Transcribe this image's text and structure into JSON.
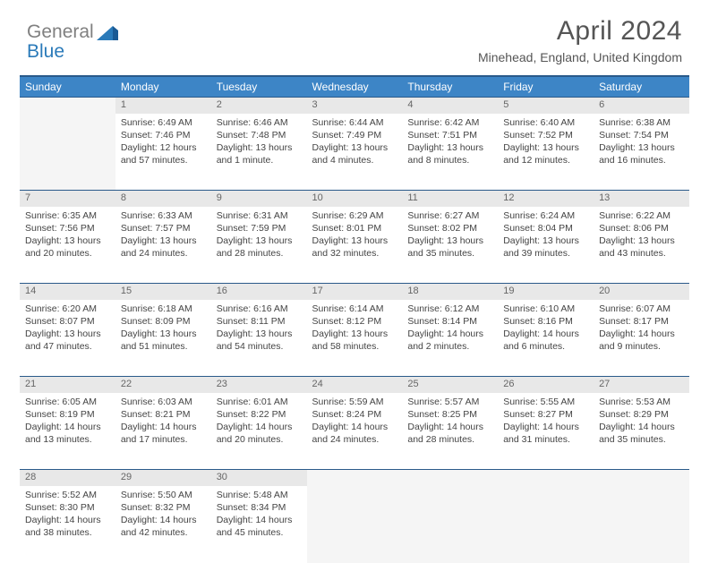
{
  "logo": {
    "text_gray": "General",
    "text_blue": "Blue"
  },
  "title": "April 2024",
  "subtitle": "Minehead, England, United Kingdom",
  "colors": {
    "header_bg": "#3d85c6",
    "header_border": "#2a5a8a",
    "daynum_bg": "#e8e8e8",
    "empty_bg": "#f5f5f5",
    "text": "#444444",
    "title_text": "#555555",
    "logo_gray": "#808080",
    "logo_blue": "#2a7ab9"
  },
  "typography": {
    "title_fontsize": 30,
    "subtitle_fontsize": 14,
    "dayheader_fontsize": 12,
    "cell_fontsize": 10.5
  },
  "day_headers": [
    "Sunday",
    "Monday",
    "Tuesday",
    "Wednesday",
    "Thursday",
    "Friday",
    "Saturday"
  ],
  "weeks": [
    {
      "nums": [
        "",
        "1",
        "2",
        "3",
        "4",
        "5",
        "6"
      ],
      "cells": [
        null,
        {
          "sr": "Sunrise: 6:49 AM",
          "ss": "Sunset: 7:46 PM",
          "dl1": "Daylight: 12 hours",
          "dl2": "and 57 minutes."
        },
        {
          "sr": "Sunrise: 6:46 AM",
          "ss": "Sunset: 7:48 PM",
          "dl1": "Daylight: 13 hours",
          "dl2": "and 1 minute."
        },
        {
          "sr": "Sunrise: 6:44 AM",
          "ss": "Sunset: 7:49 PM",
          "dl1": "Daylight: 13 hours",
          "dl2": "and 4 minutes."
        },
        {
          "sr": "Sunrise: 6:42 AM",
          "ss": "Sunset: 7:51 PM",
          "dl1": "Daylight: 13 hours",
          "dl2": "and 8 minutes."
        },
        {
          "sr": "Sunrise: 6:40 AM",
          "ss": "Sunset: 7:52 PM",
          "dl1": "Daylight: 13 hours",
          "dl2": "and 12 minutes."
        },
        {
          "sr": "Sunrise: 6:38 AM",
          "ss": "Sunset: 7:54 PM",
          "dl1": "Daylight: 13 hours",
          "dl2": "and 16 minutes."
        }
      ]
    },
    {
      "nums": [
        "7",
        "8",
        "9",
        "10",
        "11",
        "12",
        "13"
      ],
      "cells": [
        {
          "sr": "Sunrise: 6:35 AM",
          "ss": "Sunset: 7:56 PM",
          "dl1": "Daylight: 13 hours",
          "dl2": "and 20 minutes."
        },
        {
          "sr": "Sunrise: 6:33 AM",
          "ss": "Sunset: 7:57 PM",
          "dl1": "Daylight: 13 hours",
          "dl2": "and 24 minutes."
        },
        {
          "sr": "Sunrise: 6:31 AM",
          "ss": "Sunset: 7:59 PM",
          "dl1": "Daylight: 13 hours",
          "dl2": "and 28 minutes."
        },
        {
          "sr": "Sunrise: 6:29 AM",
          "ss": "Sunset: 8:01 PM",
          "dl1": "Daylight: 13 hours",
          "dl2": "and 32 minutes."
        },
        {
          "sr": "Sunrise: 6:27 AM",
          "ss": "Sunset: 8:02 PM",
          "dl1": "Daylight: 13 hours",
          "dl2": "and 35 minutes."
        },
        {
          "sr": "Sunrise: 6:24 AM",
          "ss": "Sunset: 8:04 PM",
          "dl1": "Daylight: 13 hours",
          "dl2": "and 39 minutes."
        },
        {
          "sr": "Sunrise: 6:22 AM",
          "ss": "Sunset: 8:06 PM",
          "dl1": "Daylight: 13 hours",
          "dl2": "and 43 minutes."
        }
      ]
    },
    {
      "nums": [
        "14",
        "15",
        "16",
        "17",
        "18",
        "19",
        "20"
      ],
      "cells": [
        {
          "sr": "Sunrise: 6:20 AM",
          "ss": "Sunset: 8:07 PM",
          "dl1": "Daylight: 13 hours",
          "dl2": "and 47 minutes."
        },
        {
          "sr": "Sunrise: 6:18 AM",
          "ss": "Sunset: 8:09 PM",
          "dl1": "Daylight: 13 hours",
          "dl2": "and 51 minutes."
        },
        {
          "sr": "Sunrise: 6:16 AM",
          "ss": "Sunset: 8:11 PM",
          "dl1": "Daylight: 13 hours",
          "dl2": "and 54 minutes."
        },
        {
          "sr": "Sunrise: 6:14 AM",
          "ss": "Sunset: 8:12 PM",
          "dl1": "Daylight: 13 hours",
          "dl2": "and 58 minutes."
        },
        {
          "sr": "Sunrise: 6:12 AM",
          "ss": "Sunset: 8:14 PM",
          "dl1": "Daylight: 14 hours",
          "dl2": "and 2 minutes."
        },
        {
          "sr": "Sunrise: 6:10 AM",
          "ss": "Sunset: 8:16 PM",
          "dl1": "Daylight: 14 hours",
          "dl2": "and 6 minutes."
        },
        {
          "sr": "Sunrise: 6:07 AM",
          "ss": "Sunset: 8:17 PM",
          "dl1": "Daylight: 14 hours",
          "dl2": "and 9 minutes."
        }
      ]
    },
    {
      "nums": [
        "21",
        "22",
        "23",
        "24",
        "25",
        "26",
        "27"
      ],
      "cells": [
        {
          "sr": "Sunrise: 6:05 AM",
          "ss": "Sunset: 8:19 PM",
          "dl1": "Daylight: 14 hours",
          "dl2": "and 13 minutes."
        },
        {
          "sr": "Sunrise: 6:03 AM",
          "ss": "Sunset: 8:21 PM",
          "dl1": "Daylight: 14 hours",
          "dl2": "and 17 minutes."
        },
        {
          "sr": "Sunrise: 6:01 AM",
          "ss": "Sunset: 8:22 PM",
          "dl1": "Daylight: 14 hours",
          "dl2": "and 20 minutes."
        },
        {
          "sr": "Sunrise: 5:59 AM",
          "ss": "Sunset: 8:24 PM",
          "dl1": "Daylight: 14 hours",
          "dl2": "and 24 minutes."
        },
        {
          "sr": "Sunrise: 5:57 AM",
          "ss": "Sunset: 8:25 PM",
          "dl1": "Daylight: 14 hours",
          "dl2": "and 28 minutes."
        },
        {
          "sr": "Sunrise: 5:55 AM",
          "ss": "Sunset: 8:27 PM",
          "dl1": "Daylight: 14 hours",
          "dl2": "and 31 minutes."
        },
        {
          "sr": "Sunrise: 5:53 AM",
          "ss": "Sunset: 8:29 PM",
          "dl1": "Daylight: 14 hours",
          "dl2": "and 35 minutes."
        }
      ]
    },
    {
      "nums": [
        "28",
        "29",
        "30",
        "",
        "",
        "",
        ""
      ],
      "cells": [
        {
          "sr": "Sunrise: 5:52 AM",
          "ss": "Sunset: 8:30 PM",
          "dl1": "Daylight: 14 hours",
          "dl2": "and 38 minutes."
        },
        {
          "sr": "Sunrise: 5:50 AM",
          "ss": "Sunset: 8:32 PM",
          "dl1": "Daylight: 14 hours",
          "dl2": "and 42 minutes."
        },
        {
          "sr": "Sunrise: 5:48 AM",
          "ss": "Sunset: 8:34 PM",
          "dl1": "Daylight: 14 hours",
          "dl2": "and 45 minutes."
        },
        null,
        null,
        null,
        null
      ]
    }
  ]
}
